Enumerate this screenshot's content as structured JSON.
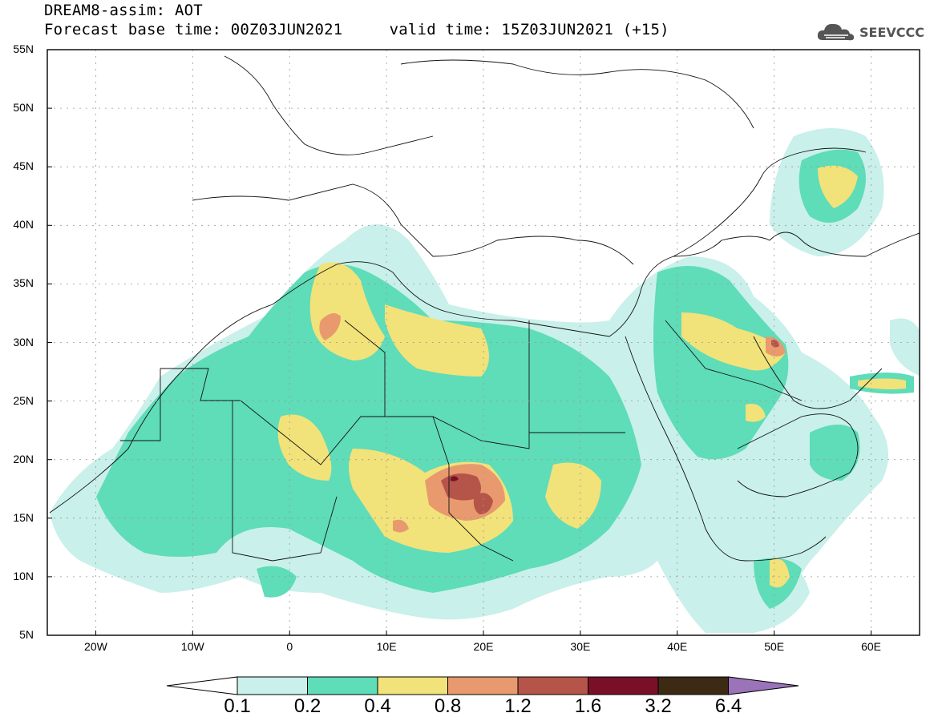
{
  "header": {
    "title_line1": "DREAM8-assim: AOT",
    "title_line2": "Forecast base time: 00Z03JUN2021     valid time: 15Z03JUN2021 (+15)"
  },
  "logo": {
    "text": "SEEVCCC",
    "icon": "cloud-icon"
  },
  "axes": {
    "lat_labels": [
      "55N",
      "50N",
      "45N",
      "40N",
      "35N",
      "30N",
      "25N",
      "20N",
      "15N",
      "10N",
      "5N"
    ],
    "lon_labels": [
      "20W",
      "10W",
      "0",
      "10E",
      "20E",
      "30E",
      "40E",
      "50E",
      "60E"
    ],
    "lat_range": [
      5,
      55
    ],
    "lon_range": [
      -25,
      65
    ],
    "grid": true
  },
  "colorbar": {
    "levels": [
      "0.1",
      "0.2",
      "0.4",
      "0.8",
      "1.2",
      "1.6",
      "3.2",
      "6.4"
    ],
    "colors": [
      "#ffffff",
      "#c9f0ea",
      "#5fdcb8",
      "#f2e27a",
      "#e89a6e",
      "#b5554a",
      "#7a1028",
      "#3d2a14",
      "#9a73b8"
    ]
  },
  "legend_colors": {
    "c1": "#c9f0ea",
    "c2": "#5fdcb8",
    "c3": "#f2e27a",
    "c4": "#e89a6e",
    "c5": "#b5554a",
    "c6": "#7a1028"
  }
}
